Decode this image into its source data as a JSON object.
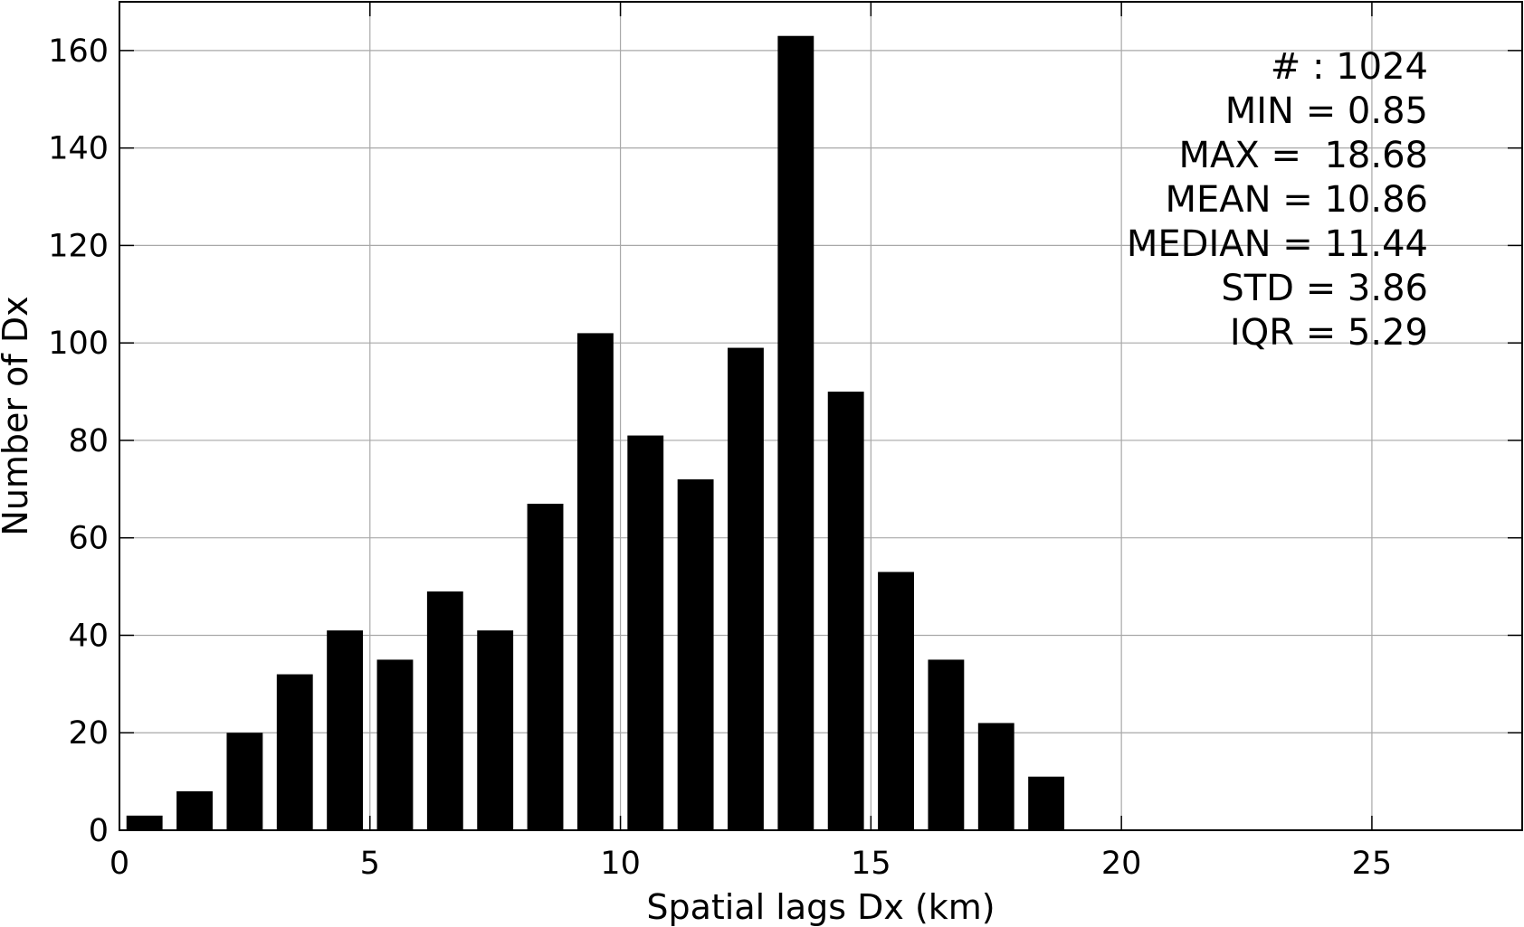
{
  "chart_data": {
    "type": "bar",
    "title": "",
    "xlabel": "Spatial lags Dx (km)",
    "ylabel": "Number of Dx",
    "xlim": [
      0,
      28
    ],
    "ylim": [
      0,
      170
    ],
    "xticks": [
      0,
      5,
      10,
      15,
      20,
      25
    ],
    "yticks": [
      0,
      20,
      40,
      60,
      80,
      100,
      120,
      140,
      160
    ],
    "grid": true,
    "bar_color": "#000000",
    "x": [
      0.5,
      1.5,
      2.5,
      3.5,
      4.5,
      5.5,
      6.5,
      7.5,
      8.5,
      9.5,
      10.5,
      11.5,
      12.5,
      13.5,
      14.5,
      15.5,
      16.5,
      17.5,
      18.5
    ],
    "values": [
      3,
      8,
      20,
      32,
      41,
      35,
      49,
      41,
      67,
      102,
      81,
      72,
      99,
      163,
      90,
      53,
      35,
      22,
      11
    ],
    "bar_width": 0.72,
    "stats": [
      "# : 1024",
      "MIN = 0.85",
      "MAX =  18.68",
      "MEAN = 10.86",
      "MEDIAN = 11.44",
      "STD = 3.86",
      "IQR = 5.29"
    ],
    "stats_position": "top-right"
  }
}
